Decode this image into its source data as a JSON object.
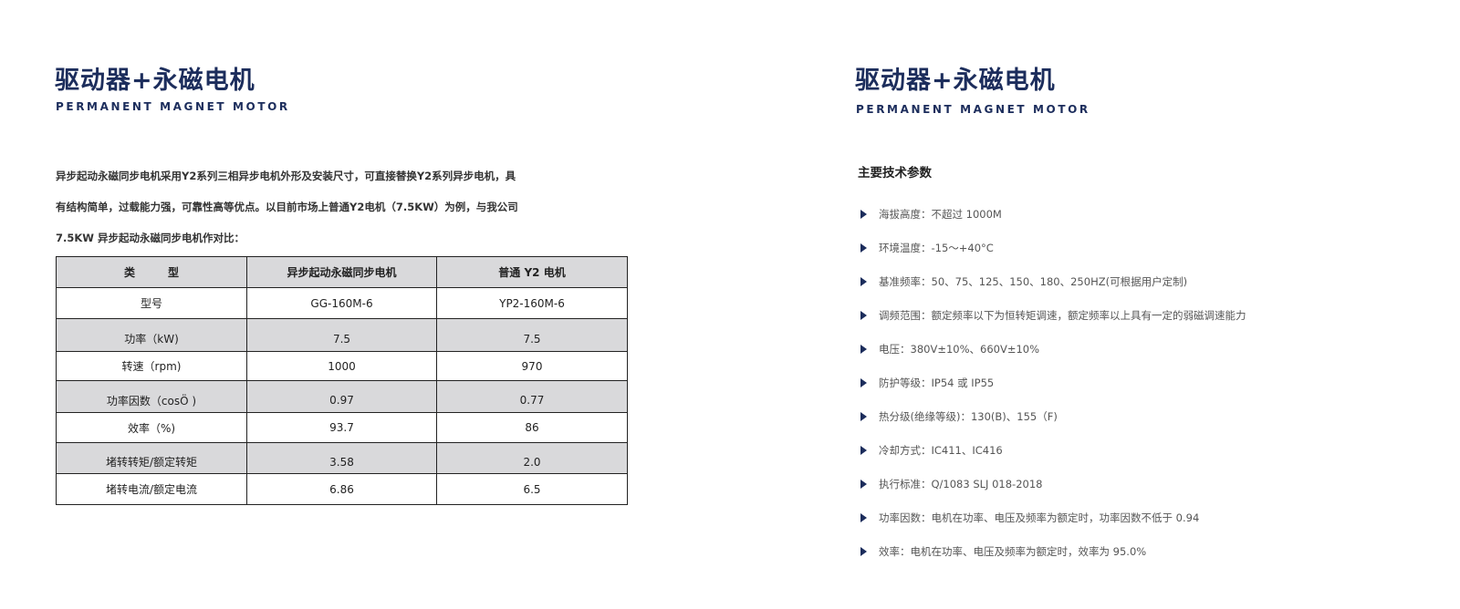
{
  "left": {
    "title": "驱动器+永磁电机",
    "subtitle": "PERMANENT MAGNET MOTOR",
    "intro_lines": [
      "异步起动永磁同步电机采用Y2系列三相异步电机外形及安装尺寸，可直接替换Y2系列异步电机，具",
      "有结构简单，过载能力强，可靠性高等优点。以目前市场上普通Y2电机（7.5KW）为例，与我公司",
      "7.5KW 异步起动永磁同步电机作对比："
    ],
    "table": {
      "headers": [
        "类　　　型",
        "异步起动永磁同步电机",
        "普通 Y2 电机"
      ],
      "rows": [
        [
          "型号",
          "GG-160M-6",
          "YP2-160M-6"
        ],
        [
          "功率（kW)",
          "7.5",
          "7.5"
        ],
        [
          "转速（rpm)",
          "1000",
          "970"
        ],
        [
          "功率因数（cosÖ )",
          "0.97",
          "0.77"
        ],
        [
          "效率（%)",
          "93.7",
          "86"
        ],
        [
          "堵转转矩/额定转矩",
          "3.58",
          "2.0"
        ],
        [
          "堵转电流/额定电流",
          "6.86",
          "6.5"
        ]
      ]
    }
  },
  "right": {
    "title": "驱动器+永磁电机",
    "subtitle": "PERMANENT MAGNET MOTOR",
    "heading": "主要技术参数",
    "items": [
      "海拔高度：不超过 1000M",
      "环境温度：-15～+40°C",
      "基准频率：50、75、125、150、180、250HZ(可根据用户定制)",
      "调频范围：额定频率以下为恒转矩调速，额定频率以上具有一定的弱磁调速能力",
      "电压：380V±10%、660V±10%",
      "防护等级：IP54 或 IP55",
      "热分级(绝缘等级)：130(B)、155（F)",
      "冷却方式：IC411、IC416",
      "执行标准：Q/1083 SLJ 018-2018",
      "功率因数：电机在功率、电压及频率为额定时，功率因数不低于 0.94",
      "效率：电机在功率、电压及频率为额定时，效率为 95.0%"
    ]
  },
  "colors": {
    "brand": "#1c2d5c",
    "table_shade": "#d9d9db"
  }
}
